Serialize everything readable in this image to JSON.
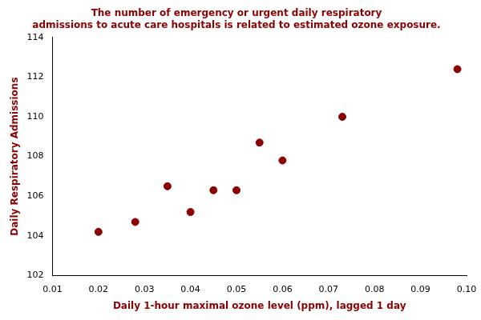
{
  "chart_data": {
    "type": "scatter",
    "title": "The number of emergency or urgent daily respiratory\nadmissions to acute care hospitals is related to estimated ozone exposure.",
    "xlabel": "Daily 1-hour maximal ozone level (ppm), lagged 1 day",
    "ylabel": "Daily Respiratory Admissions",
    "x": [
      0.02,
      0.028,
      0.035,
      0.04,
      0.045,
      0.05,
      0.055,
      0.06,
      0.073,
      0.098
    ],
    "values": [
      104.2,
      104.7,
      106.5,
      105.2,
      106.3,
      106.3,
      108.7,
      107.8,
      110.0,
      112.4
    ],
    "color": "#8B0000",
    "xlim": [
      0.01,
      0.1
    ],
    "ylim": [
      102,
      114
    ],
    "xticks": [
      0.01,
      0.02,
      0.03,
      0.04,
      0.05,
      0.06,
      0.07,
      0.08,
      0.09,
      {
        "value": 0.1,
        "label": "0.10"
      }
    ],
    "yticks": [
      102,
      104,
      106,
      108,
      110,
      112,
      114
    ],
    "grid": false
  }
}
